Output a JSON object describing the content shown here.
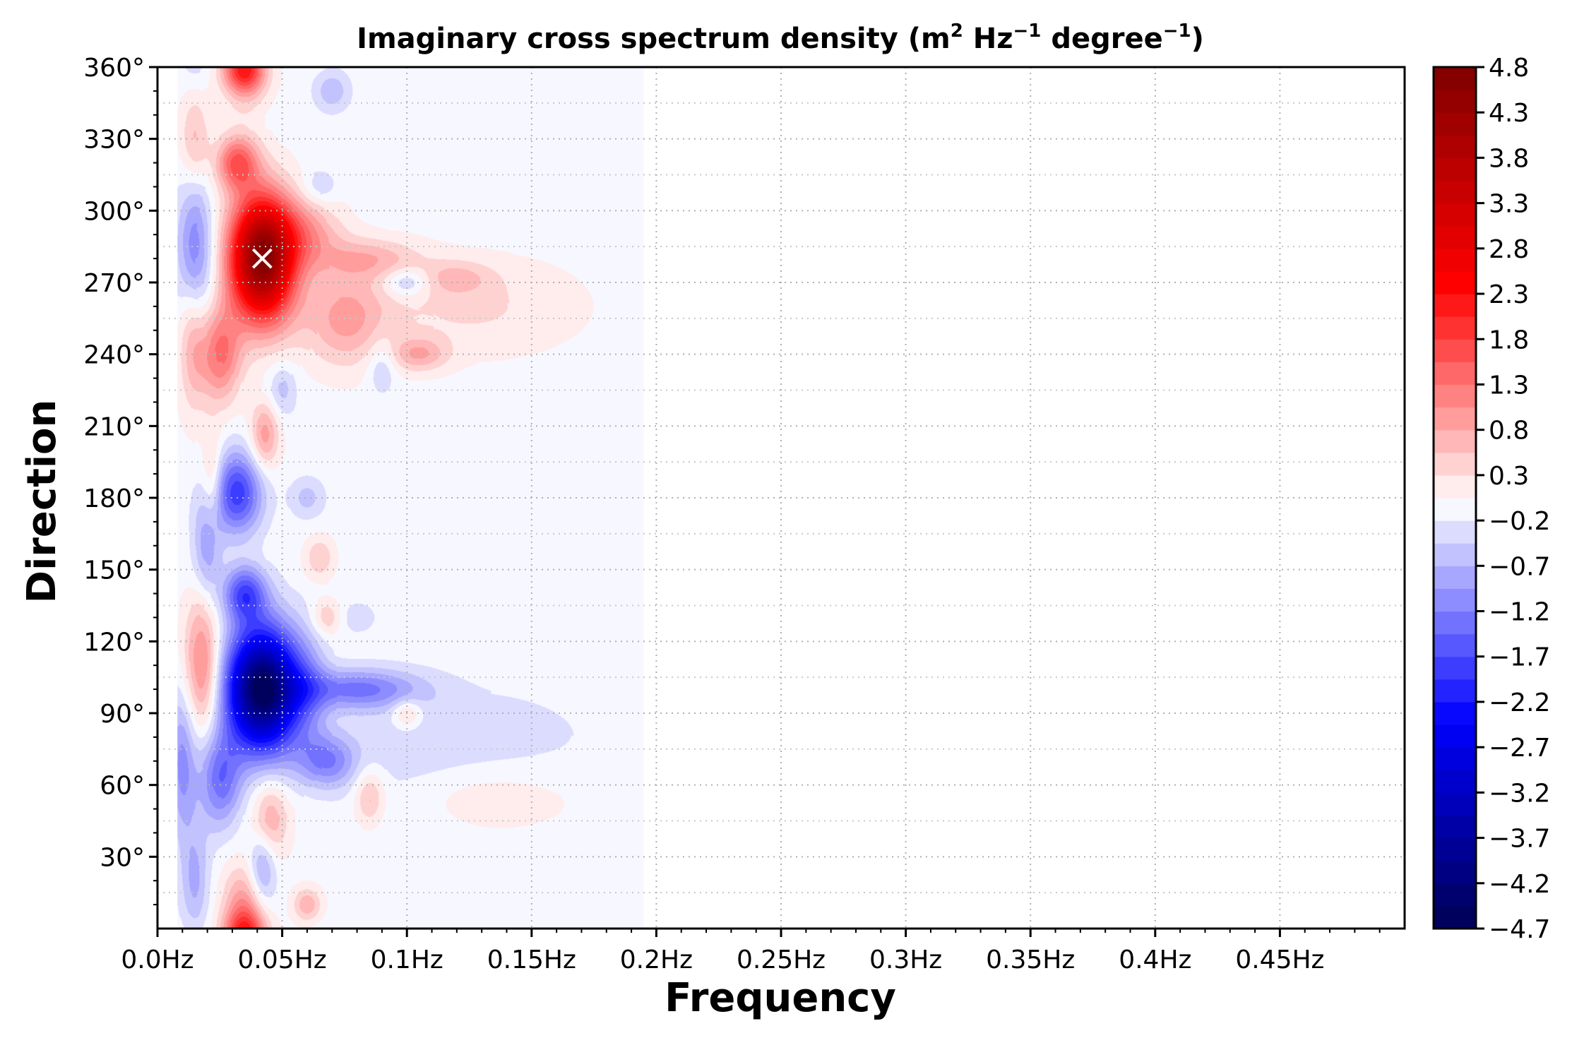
{
  "chart_data": {
    "type": "heatmap",
    "title": "Imaginary cross spectrum density (m² Hz⁻¹ degree⁻¹)",
    "title_parts": {
      "main": "Imaginary cross spectrum density (",
      "m": "m",
      "m_exp": "2",
      "hz": " Hz",
      "hz_exp": "−1",
      "deg": " degree",
      "deg_exp": "−1",
      "close": ")"
    },
    "xlabel": "Frequency",
    "ylabel": "Direction",
    "xlim": [
      0.0,
      0.5
    ],
    "ylim": [
      0,
      360
    ],
    "x_ticks": [
      {
        "value": 0.0,
        "label": "0.0Hz"
      },
      {
        "value": 0.05,
        "label": "0.05Hz"
      },
      {
        "value": 0.1,
        "label": "0.1Hz"
      },
      {
        "value": 0.15,
        "label": "0.15Hz"
      },
      {
        "value": 0.2,
        "label": "0.2Hz"
      },
      {
        "value": 0.25,
        "label": "0.25Hz"
      },
      {
        "value": 0.3,
        "label": "0.3Hz"
      },
      {
        "value": 0.35,
        "label": "0.35Hz"
      },
      {
        "value": 0.4,
        "label": "0.4Hz"
      },
      {
        "value": 0.45,
        "label": "0.45Hz"
      }
    ],
    "y_ticks": [
      {
        "value": 30,
        "label": "30°"
      },
      {
        "value": 60,
        "label": "60°"
      },
      {
        "value": 90,
        "label": "90°"
      },
      {
        "value": 120,
        "label": "120°"
      },
      {
        "value": 150,
        "label": "150°"
      },
      {
        "value": 180,
        "label": "180°"
      },
      {
        "value": 210,
        "label": "210°"
      },
      {
        "value": 240,
        "label": "240°"
      },
      {
        "value": 270,
        "label": "270°"
      },
      {
        "value": 300,
        "label": "300°"
      },
      {
        "value": 330,
        "label": "330°"
      },
      {
        "value": 360,
        "label": "360°"
      }
    ],
    "grid": true,
    "grid_style": "dotted",
    "data_frequency_range": [
      0.008,
      0.195
    ],
    "background_value": -0.05,
    "colormap": "seismic",
    "colorbar": {
      "min": -4.7,
      "max": 4.8,
      "levels_step": 0.25,
      "ticks": [
        {
          "value": 4.8,
          "label": "4.8"
        },
        {
          "value": 4.3,
          "label": "4.3"
        },
        {
          "value": 3.8,
          "label": "3.8"
        },
        {
          "value": 3.3,
          "label": "3.3"
        },
        {
          "value": 2.8,
          "label": "2.8"
        },
        {
          "value": 2.3,
          "label": "2.3"
        },
        {
          "value": 1.8,
          "label": "1.8"
        },
        {
          "value": 1.3,
          "label": "1.3"
        },
        {
          "value": 0.8,
          "label": "0.8"
        },
        {
          "value": 0.3,
          "label": "0.3"
        },
        {
          "value": -0.2,
          "label": "−0.2"
        },
        {
          "value": -0.7,
          "label": "−0.7"
        },
        {
          "value": -1.2,
          "label": "−1.2"
        },
        {
          "value": -1.7,
          "label": "−1.7"
        },
        {
          "value": -2.2,
          "label": "−2.2"
        },
        {
          "value": -2.7,
          "label": "−2.7"
        },
        {
          "value": -3.2,
          "label": "−3.2"
        },
        {
          "value": -3.7,
          "label": "−3.7"
        },
        {
          "value": -4.2,
          "label": "−4.2"
        },
        {
          "value": -4.7,
          "label": "−4.7"
        }
      ]
    },
    "peak_marker": {
      "frequency": 0.042,
      "direction": 280
    },
    "features": [
      {
        "frequency": 0.042,
        "direction": 280,
        "value": 4.8,
        "spread_f": 0.009,
        "spread_d": 18
      },
      {
        "frequency": 0.032,
        "direction": 320,
        "value": 1.6,
        "spread_f": 0.006,
        "spread_d": 8
      },
      {
        "frequency": 0.025,
        "direction": 240,
        "value": 1.4,
        "spread_f": 0.006,
        "spread_d": 14
      },
      {
        "frequency": 0.014,
        "direction": 250,
        "value": 0.9,
        "spread_f": 0.004,
        "spread_d": 22
      },
      {
        "frequency": 0.06,
        "direction": 290,
        "value": 0.9,
        "spread_f": 0.01,
        "spread_d": 10
      },
      {
        "frequency": 0.075,
        "direction": 255,
        "value": 0.9,
        "spread_f": 0.012,
        "spread_d": 14
      },
      {
        "frequency": 0.085,
        "direction": 280,
        "value": 0.7,
        "spread_f": 0.014,
        "spread_d": 6
      },
      {
        "frequency": 0.12,
        "direction": 272,
        "value": 0.5,
        "spread_f": 0.01,
        "spread_d": 5
      },
      {
        "frequency": 0.035,
        "direction": 358,
        "value": 1.2,
        "spread_f": 0.006,
        "spread_d": 6
      },
      {
        "frequency": 0.015,
        "direction": 330,
        "value": 0.7,
        "spread_f": 0.004,
        "spread_d": 14
      },
      {
        "frequency": 0.043,
        "direction": 206,
        "value": 1.0,
        "spread_f": 0.004,
        "spread_d": 10
      },
      {
        "frequency": 0.022,
        "direction": 185,
        "value": 0.8,
        "spread_f": 0.003,
        "spread_d": 14
      },
      {
        "frequency": 0.018,
        "direction": 110,
        "value": 1.3,
        "spread_f": 0.005,
        "spread_d": 20
      },
      {
        "frequency": 0.035,
        "direction": 5,
        "value": 1.3,
        "spread_f": 0.006,
        "spread_d": 14
      },
      {
        "frequency": 0.045,
        "direction": 45,
        "value": 0.9,
        "spread_f": 0.005,
        "spread_d": 12
      },
      {
        "frequency": 0.065,
        "direction": 155,
        "value": 0.6,
        "spread_f": 0.004,
        "spread_d": 6
      },
      {
        "frequency": 0.068,
        "direction": 130,
        "value": 0.6,
        "spread_f": 0.004,
        "spread_d": 5
      },
      {
        "frequency": 0.085,
        "direction": 55,
        "value": 0.7,
        "spread_f": 0.004,
        "spread_d": 8
      },
      {
        "frequency": 0.1,
        "direction": 90,
        "value": 0.7,
        "spread_f": 0.004,
        "spread_d": 4
      },
      {
        "frequency": 0.105,
        "direction": 240,
        "value": 0.8,
        "spread_f": 0.008,
        "spread_d": 5
      },
      {
        "frequency": 0.125,
        "direction": 260,
        "value": 0.4,
        "spread_f": 0.03,
        "spread_d": 14
      },
      {
        "frequency": 0.12,
        "direction": 55,
        "value": 0.4,
        "spread_f": 0.03,
        "spread_d": 10
      },
      {
        "frequency": 0.06,
        "direction": 10,
        "value": 0.8,
        "spread_f": 0.004,
        "spread_d": 5
      },
      {
        "frequency": 0.042,
        "direction": 100,
        "value": -4.6,
        "spread_f": 0.01,
        "spread_d": 18
      },
      {
        "frequency": 0.035,
        "direction": 140,
        "value": -1.6,
        "spread_f": 0.006,
        "spread_d": 8
      },
      {
        "frequency": 0.032,
        "direction": 182,
        "value": -1.8,
        "spread_f": 0.007,
        "spread_d": 12
      },
      {
        "frequency": 0.015,
        "direction": 280,
        "value": -1.3,
        "spread_f": 0.005,
        "spread_d": 22
      },
      {
        "frequency": 0.025,
        "direction": 62,
        "value": -1.3,
        "spread_f": 0.006,
        "spread_d": 14
      },
      {
        "frequency": 0.042,
        "direction": 25,
        "value": -1.0,
        "spread_f": 0.004,
        "spread_d": 12
      },
      {
        "frequency": 0.068,
        "direction": 70,
        "value": -1.1,
        "spread_f": 0.008,
        "spread_d": 8
      },
      {
        "frequency": 0.08,
        "direction": 100,
        "value": -1.2,
        "spread_f": 0.018,
        "spread_d": 6
      },
      {
        "frequency": 0.01,
        "direction": 70,
        "value": -1.0,
        "spread_f": 0.004,
        "spread_d": 22
      },
      {
        "frequency": 0.02,
        "direction": 160,
        "value": -0.9,
        "spread_f": 0.004,
        "spread_d": 16
      },
      {
        "frequency": 0.06,
        "direction": 180,
        "value": -0.5,
        "spread_f": 0.005,
        "spread_d": 6
      },
      {
        "frequency": 0.05,
        "direction": 225,
        "value": -0.5,
        "spread_f": 0.004,
        "spread_d": 8
      },
      {
        "frequency": 0.07,
        "direction": 350,
        "value": -0.6,
        "spread_f": 0.005,
        "spread_d": 6
      },
      {
        "frequency": 0.065,
        "direction": 310,
        "value": -0.4,
        "spread_f": 0.005,
        "spread_d": 5
      },
      {
        "frequency": 0.1,
        "direction": 270,
        "value": -0.7,
        "spread_f": 0.006,
        "spread_d": 4
      },
      {
        "frequency": 0.09,
        "direction": 235,
        "value": -0.5,
        "spread_f": 0.004,
        "spread_d": 8
      },
      {
        "frequency": 0.06,
        "direction": 100,
        "value": -0.6,
        "spread_f": 0.006,
        "spread_d": 16
      },
      {
        "frequency": 0.12,
        "direction": 80,
        "value": -0.3,
        "spread_f": 0.04,
        "spread_d": 16
      },
      {
        "frequency": 0.1,
        "direction": 55,
        "value": -0.3,
        "spread_f": 0.02,
        "spread_d": 12
      },
      {
        "frequency": 0.015,
        "direction": 20,
        "value": -0.7,
        "spread_f": 0.004,
        "spread_d": 16
      },
      {
        "frequency": 0.08,
        "direction": 130,
        "value": -0.3,
        "spread_f": 0.006,
        "spread_d": 5
      }
    ]
  }
}
